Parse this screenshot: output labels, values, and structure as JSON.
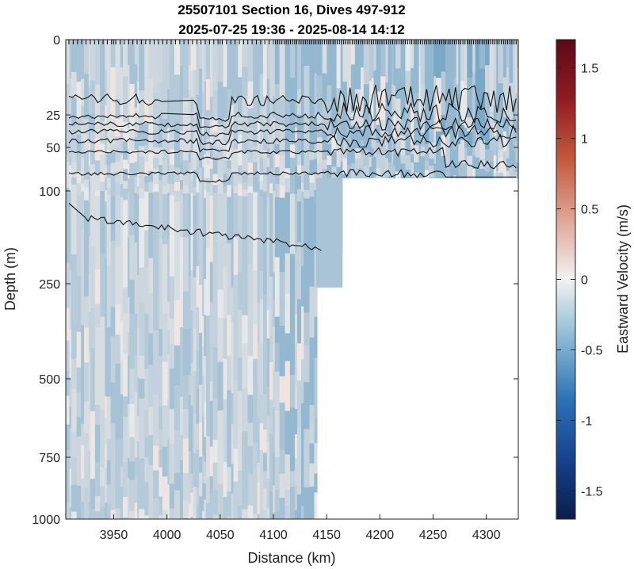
{
  "chart_data": {
    "type": "heatmap",
    "title_line1": "25507101 Section 16, Dives 497-912",
    "title_line2": "2025-07-25 19:36 - 2025-08-14 14:12",
    "xlabel": "Distance (km)",
    "ylabel": "Depth (m)",
    "colorbar_label": "Eastward Velocity (m/s)",
    "xlim": [
      3905,
      4330
    ],
    "x_ticks": [
      3950,
      4000,
      4050,
      4100,
      4150,
      4200,
      4250,
      4300
    ],
    "y_ticks": [
      0,
      25,
      50,
      100,
      250,
      500,
      750,
      1000
    ],
    "y_scale": "nonlinear (stretched near surface)",
    "colorbar_ticks": [
      1.5,
      1,
      0.5,
      0,
      -0.5,
      -1,
      -1.5
    ],
    "colorbar_range": [
      -1.7,
      1.7
    ],
    "colormap": "blue-white-red diverging",
    "cmap_colors": {
      "neg_max": "#0b1d4a",
      "neg_mid": "#2b73b6",
      "neg_light": "#8fbad4",
      "zero": "#f2f2f2",
      "pos_light": "#e0a89a",
      "pos_mid": "#c45a3d",
      "pos_max": "#5c0a14"
    },
    "data_extent": [
      {
        "x_max": 4145,
        "depth_max": 1000
      },
      {
        "x_max": 4330,
        "depth_max": 85
      }
    ],
    "field_values": {
      "typical_range": [
        -0.6,
        0.2
      ],
      "predominant_sign": "westward (negative)"
    },
    "contour_lines": "black isopycnal-like contours concentrated between 20 and 90 m, one deeper contour near 150-190 m for x < 4145 km",
    "grid": false,
    "legend": "colorbar at right"
  }
}
